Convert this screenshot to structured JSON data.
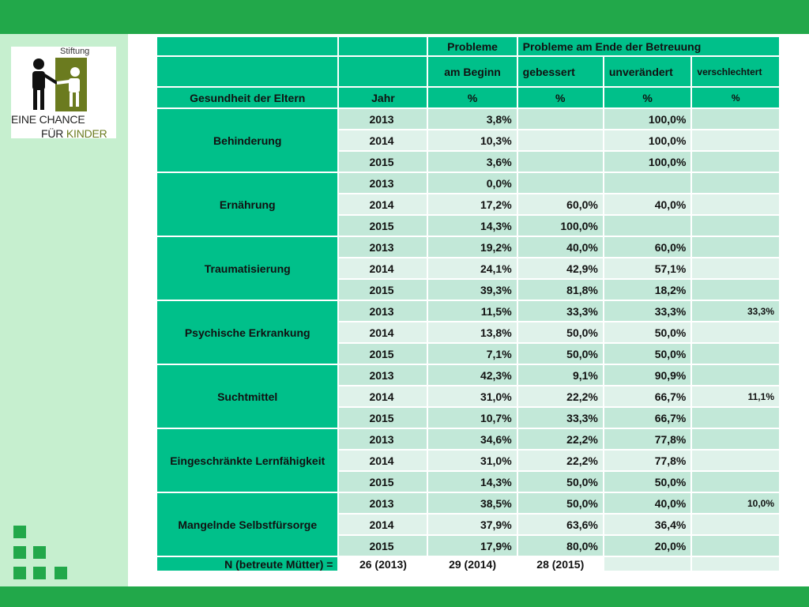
{
  "brand": {
    "stiftung": "Stiftung",
    "line1": "EINE CHANCE",
    "line2_a": "FÜR ",
    "line2_b": "KINDER",
    "colors": {
      "green": "#22a84a",
      "teal": "#00c08a",
      "olive": "#6b7b1f"
    }
  },
  "table": {
    "header1": {
      "c3": "Probleme",
      "c4": "Probleme am Ende der Betreuung"
    },
    "header2": {
      "c3": "am Beginn",
      "c4": "gebessert",
      "c5": "unverändert",
      "c6": "verschlechtert"
    },
    "header3": {
      "c1": "Gesundheit der Eltern",
      "c2": "Jahr",
      "c3": "%",
      "c4": "%",
      "c5": "%",
      "c6": "%"
    },
    "groups": [
      {
        "name": "Behinderung",
        "rows": [
          {
            "year": "2013",
            "beginn": "3,8%",
            "gebessert": "",
            "unveraendert": "100,0%",
            "verschlechtert": ""
          },
          {
            "year": "2014",
            "beginn": "10,3%",
            "gebessert": "",
            "unveraendert": "100,0%",
            "verschlechtert": ""
          },
          {
            "year": "2015",
            "beginn": "3,6%",
            "gebessert": "",
            "unveraendert": "100,0%",
            "verschlechtert": ""
          }
        ]
      },
      {
        "name": "Ernährung",
        "rows": [
          {
            "year": "2013",
            "beginn": "0,0%",
            "gebessert": "",
            "unveraendert": "",
            "verschlechtert": ""
          },
          {
            "year": "2014",
            "beginn": "17,2%",
            "gebessert": "60,0%",
            "unveraendert": "40,0%",
            "verschlechtert": ""
          },
          {
            "year": "2015",
            "beginn": "14,3%",
            "gebessert": "100,0%",
            "unveraendert": "",
            "verschlechtert": ""
          }
        ]
      },
      {
        "name": "Traumatisierung",
        "rows": [
          {
            "year": "2013",
            "beginn": "19,2%",
            "gebessert": "40,0%",
            "unveraendert": "60,0%",
            "verschlechtert": ""
          },
          {
            "year": "2014",
            "beginn": "24,1%",
            "gebessert": "42,9%",
            "unveraendert": "57,1%",
            "verschlechtert": ""
          },
          {
            "year": "2015",
            "beginn": "39,3%",
            "gebessert": "81,8%",
            "unveraendert": "18,2%",
            "verschlechtert": ""
          }
        ]
      },
      {
        "name": "Psychische Erkrankung",
        "rows": [
          {
            "year": "2013",
            "beginn": "11,5%",
            "gebessert": "33,3%",
            "unveraendert": "33,3%",
            "verschlechtert": "33,3%"
          },
          {
            "year": "2014",
            "beginn": "13,8%",
            "gebessert": "50,0%",
            "unveraendert": "50,0%",
            "verschlechtert": ""
          },
          {
            "year": "2015",
            "beginn": "7,1%",
            "gebessert": "50,0%",
            "unveraendert": "50,0%",
            "verschlechtert": ""
          }
        ]
      },
      {
        "name": "Suchtmittel",
        "rows": [
          {
            "year": "2013",
            "beginn": "42,3%",
            "gebessert": "9,1%",
            "unveraendert": "90,9%",
            "verschlechtert": ""
          },
          {
            "year": "2014",
            "beginn": "31,0%",
            "gebessert": "22,2%",
            "unveraendert": "66,7%",
            "verschlechtert": "11,1%"
          },
          {
            "year": "2015",
            "beginn": "10,7%",
            "gebessert": "33,3%",
            "unveraendert": "66,7%",
            "verschlechtert": ""
          }
        ]
      },
      {
        "name": "Eingeschränkte Lernfähigkeit",
        "rows": [
          {
            "year": "2013",
            "beginn": "34,6%",
            "gebessert": "22,2%",
            "unveraendert": "77,8%",
            "verschlechtert": ""
          },
          {
            "year": "2014",
            "beginn": "31,0%",
            "gebessert": "22,2%",
            "unveraendert": "77,8%",
            "verschlechtert": ""
          },
          {
            "year": "2015",
            "beginn": "14,3%",
            "gebessert": "50,0%",
            "unveraendert": "50,0%",
            "verschlechtert": ""
          }
        ]
      },
      {
        "name": "Mangelnde Selbstfürsorge",
        "rows": [
          {
            "year": "2013",
            "beginn": "38,5%",
            "gebessert": "50,0%",
            "unveraendert": "40,0%",
            "verschlechtert": "10,0%"
          },
          {
            "year": "2014",
            "beginn": "37,9%",
            "gebessert": "63,6%",
            "unveraendert": "36,4%",
            "verschlechtert": ""
          },
          {
            "year": "2015",
            "beginn": "17,9%",
            "gebessert": "80,0%",
            "unveraendert": "20,0%",
            "verschlechtert": ""
          }
        ]
      }
    ],
    "footer": {
      "label": "N (betreute Mütter) =",
      "n2013": "26 (2013)",
      "n2014": "29 (2014)",
      "n2015": "28 (2015)"
    }
  }
}
